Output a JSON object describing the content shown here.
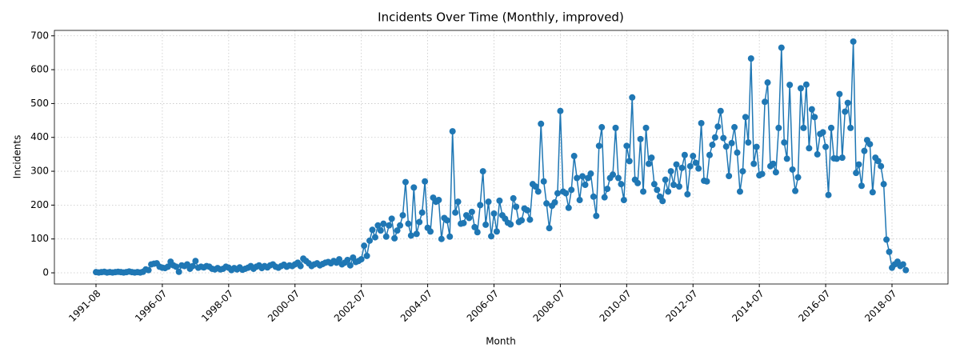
{
  "chart_data": {
    "type": "line",
    "title": "Incidents Over Time (Monthly, improved)",
    "x_label": "Month",
    "y_label": "Incidents",
    "grid": true,
    "marker": "circle",
    "categories": [
      "1991-08",
      null,
      null,
      null,
      null,
      null,
      null,
      null,
      null,
      null,
      null,
      null,
      null,
      null,
      null,
      null,
      null,
      null,
      null,
      null,
      null,
      null,
      null,
      null,
      "1996-07",
      null,
      null,
      null,
      null,
      null,
      null,
      null,
      null,
      null,
      null,
      null,
      null,
      null,
      null,
      null,
      null,
      null,
      null,
      null,
      null,
      null,
      null,
      null,
      "1998-07",
      null,
      null,
      null,
      null,
      null,
      null,
      null,
      null,
      null,
      null,
      null,
      null,
      null,
      null,
      null,
      null,
      null,
      null,
      null,
      null,
      null,
      null,
      null,
      "2000-07",
      null,
      null,
      null,
      null,
      null,
      null,
      null,
      null,
      null,
      null,
      null,
      null,
      null,
      null,
      null,
      null,
      null,
      null,
      null,
      null,
      null,
      null,
      null,
      "2002-07",
      null,
      null,
      null,
      null,
      null,
      null,
      null,
      null,
      null,
      null,
      null,
      null,
      null,
      null,
      null,
      null,
      null,
      null,
      null,
      null,
      null,
      null,
      null,
      "2004-07",
      null,
      null,
      null,
      null,
      null,
      null,
      null,
      null,
      null,
      null,
      null,
      null,
      null,
      null,
      null,
      null,
      null,
      null,
      null,
      null,
      null,
      null,
      null,
      "2006-07",
      null,
      null,
      null,
      null,
      null,
      null,
      null,
      null,
      null,
      null,
      null,
      null,
      null,
      null,
      null,
      null,
      null,
      null,
      null,
      null,
      null,
      null,
      null,
      "2008-07",
      null,
      null,
      null,
      null,
      null,
      null,
      null,
      null,
      null,
      null,
      null,
      null,
      null,
      null,
      null,
      null,
      null,
      null,
      null,
      null,
      null,
      null,
      null,
      "2010-07",
      null,
      null,
      null,
      null,
      null,
      null,
      null,
      null,
      null,
      null,
      null,
      null,
      null,
      null,
      null,
      null,
      null,
      null,
      null,
      null,
      null,
      null,
      null,
      "2012-07",
      null,
      null,
      null,
      null,
      null,
      null,
      null,
      null,
      null,
      null,
      null,
      null,
      null,
      null,
      null,
      null,
      null,
      null,
      null,
      null,
      null,
      null,
      null,
      "2014-07",
      null,
      null,
      null,
      null,
      null,
      null,
      null,
      null,
      null,
      null,
      null,
      null,
      null,
      null,
      null,
      null,
      null,
      null,
      null,
      null,
      null,
      null,
      null,
      "2016-07",
      null,
      null,
      null,
      null,
      null,
      null,
      null,
      null,
      null,
      null,
      null,
      null,
      null,
      null,
      null,
      null,
      null,
      null,
      null,
      null,
      null,
      null,
      null,
      "2018-07",
      null,
      null,
      null,
      null,
      null
    ],
    "series": [
      {
        "name": "Incidents",
        "color": "#1f77b4",
        "values": [
          2,
          1,
          2,
          3,
          1,
          2,
          1,
          2,
          3,
          2,
          1,
          2,
          4,
          2,
          1,
          2,
          1,
          3,
          10,
          8,
          25,
          27,
          28,
          18,
          15,
          14,
          18,
          33,
          22,
          18,
          3,
          22,
          20,
          25,
          12,
          20,
          35,
          15,
          18,
          16,
          20,
          18,
          12,
          10,
          14,
          10,
          12,
          18,
          15,
          8,
          14,
          10,
          16,
          9,
          12,
          15,
          20,
          12,
          18,
          22,
          14,
          20,
          16,
          22,
          25,
          18,
          15,
          20,
          24,
          18,
          22,
          20,
          25,
          30,
          20,
          42,
          35,
          28,
          20,
          25,
          28,
          22,
          26,
          30,
          32,
          28,
          35,
          30,
          40,
          25,
          30,
          38,
          22,
          45,
          32,
          35,
          40,
          80,
          50,
          95,
          127,
          105,
          140,
          125,
          145,
          107,
          140,
          160,
          102,
          125,
          140,
          170,
          268,
          145,
          110,
          252,
          115,
          150,
          178,
          270,
          133,
          122,
          222,
          210,
          215,
          100,
          162,
          155,
          107,
          418,
          178,
          210,
          145,
          147,
          170,
          162,
          180,
          135,
          120,
          200,
          300,
          142,
          210,
          108,
          175,
          122,
          213,
          170,
          160,
          148,
          143,
          220,
          195,
          150,
          155,
          190,
          185,
          157,
          262,
          255,
          240,
          440,
          270,
          205,
          132,
          198,
          208,
          235,
          478,
          240,
          235,
          192,
          245,
          345,
          280,
          215,
          285,
          260,
          280,
          293,
          225,
          168,
          375,
          430,
          223,
          248,
          280,
          290,
          428,
          280,
          262,
          215,
          375,
          330,
          518,
          275,
          265,
          395,
          240,
          428,
          322,
          340,
          262,
          245,
          225,
          212,
          275,
          240,
          300,
          260,
          320,
          255,
          310,
          348,
          232,
          315,
          345,
          325,
          308,
          442,
          272,
          270,
          348,
          378,
          400,
          432,
          478,
          398,
          373,
          286,
          383,
          430,
          355,
          240,
          300,
          460,
          385,
          633,
          322,
          372,
          288,
          292,
          505,
          562,
          315,
          322,
          297,
          428,
          665,
          385,
          337,
          555,
          305,
          242,
          282,
          545,
          428,
          556,
          368,
          483,
          460,
          350,
          410,
          415,
          372,
          230,
          428,
          338,
          337,
          528,
          340,
          476,
          502,
          428,
          683,
          295,
          320,
          257,
          360,
          392,
          380,
          238,
          340,
          330,
          315,
          262,
          98,
          62,
          15,
          25,
          33,
          20,
          25,
          8
        ]
      }
    ],
    "ylim": [
      -33,
      716
    ],
    "yticks": [
      0,
      100,
      200,
      300,
      400,
      500,
      600,
      700
    ]
  }
}
